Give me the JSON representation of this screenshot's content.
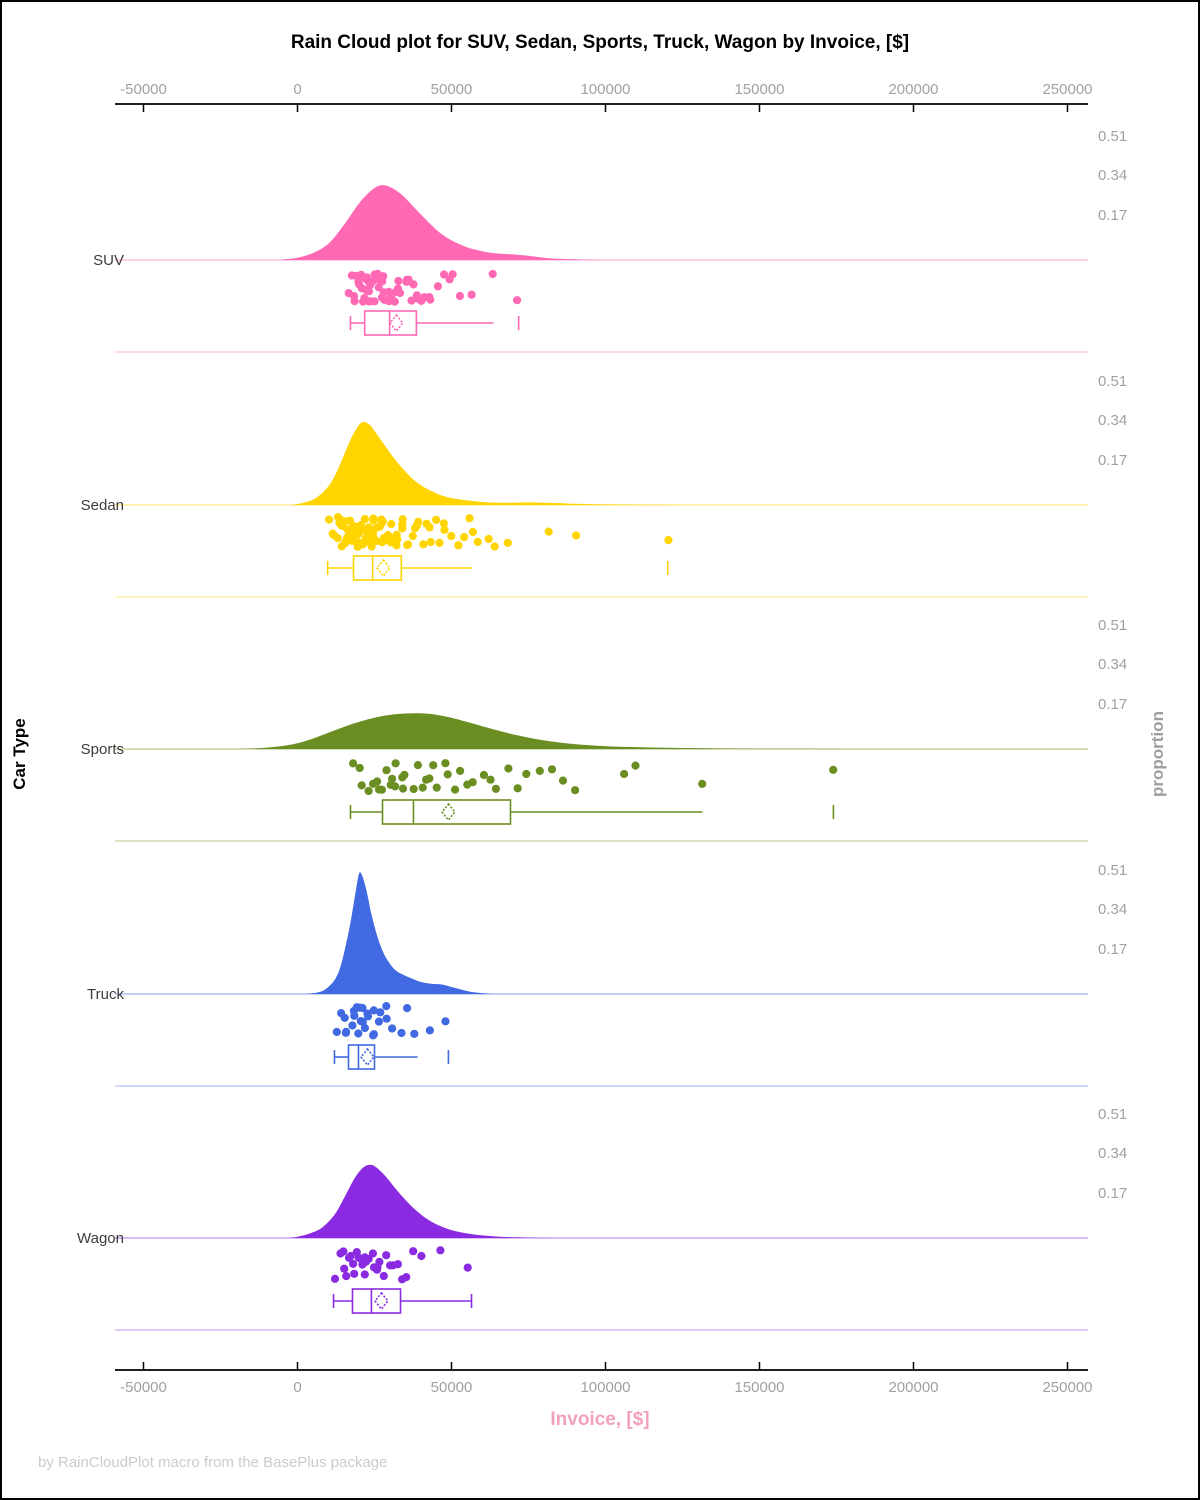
{
  "header": {
    "title": "Rain Cloud plot for SUV, Sedan, Sports, Truck, Wagon by Invoice, [$]"
  },
  "footer": {
    "credit": "by RainCloudPlot macro from the BasePlus package"
  },
  "colors": {
    "title": "#000000",
    "axis_line": "#000000",
    "tick_label": "#A1A1A1",
    "xlabel": "#F2A1BB",
    "ylabel_right": "#9E9E9E",
    "category_label": "#3C3C3C",
    "footer": "#CBCBCB",
    "background": "#FFFFFF"
  },
  "chart_data": {
    "type": "raincloud",
    "title": "Rain Cloud plot for SUV, Sedan, Sports, Truck, Wagon by Invoice, [$]",
    "xlabel": "Invoice, [$]",
    "ylabel": "Car Type",
    "ylabel2": "proportion",
    "xlim": [
      -58500,
      256500
    ],
    "x_ticks": [
      -50000,
      0,
      50000,
      100000,
      150000,
      200000,
      250000
    ],
    "x_tick_labels": [
      "-50000",
      "0",
      "50000",
      "100000",
      "150000",
      "200000",
      "250000"
    ],
    "proportion_ticks": [
      0.51,
      0.34,
      0.17
    ],
    "proportion_tick_labels": [
      "0.51",
      "0.34",
      "0.17"
    ],
    "grid": false,
    "legend": "none",
    "categories": [
      {
        "name": "SUV",
        "color": "#FF69B4",
        "density": [
          [
            -5000,
            0.002
          ],
          [
            0,
            0.01
          ],
          [
            5000,
            0.03
          ],
          [
            10000,
            0.07
          ],
          [
            15000,
            0.15
          ],
          [
            20000,
            0.245
          ],
          [
            24000,
            0.3
          ],
          [
            27000,
            0.322
          ],
          [
            30000,
            0.315
          ],
          [
            34000,
            0.28
          ],
          [
            38000,
            0.225
          ],
          [
            42000,
            0.17
          ],
          [
            46000,
            0.12
          ],
          [
            50000,
            0.085
          ],
          [
            55000,
            0.055
          ],
          [
            60000,
            0.038
          ],
          [
            65000,
            0.028
          ],
          [
            70000,
            0.024
          ],
          [
            75000,
            0.018
          ],
          [
            80000,
            0.01
          ],
          [
            85000,
            0.005
          ],
          [
            92000,
            0.002
          ],
          [
            100000,
            0
          ]
        ],
        "points": [
          17300,
          17900,
          18400,
          18900,
          19300,
          19700,
          20100,
          20400,
          20700,
          21000,
          21300,
          21600,
          21900,
          22200,
          22500,
          22800,
          23100,
          23400,
          23700,
          24000,
          24300,
          24700,
          25100,
          25500,
          25900,
          26300,
          26700,
          27100,
          27500,
          27900,
          28300,
          28800,
          29300,
          29800,
          30300,
          30800,
          31400,
          32000,
          32600,
          33200,
          33900,
          34600,
          35300,
          36000,
          36800,
          37600,
          38400,
          39300,
          40300,
          41400,
          42600,
          43900,
          45300,
          46900,
          48700,
          50700,
          53000,
          57000,
          63500,
          71500
        ],
        "boxplot": {
          "whisker_low": 17200,
          "q1": 21800,
          "median": 29900,
          "q3": 38600,
          "whisker_high": 63600,
          "mean": 32100,
          "outliers": [
            71800
          ]
        }
      },
      {
        "name": "Sedan",
        "color": "#FFD400",
        "density": [
          [
            -2000,
            0
          ],
          [
            2000,
            0.01
          ],
          [
            6000,
            0.03
          ],
          [
            10000,
            0.08
          ],
          [
            13000,
            0.15
          ],
          [
            16000,
            0.245
          ],
          [
            18500,
            0.315
          ],
          [
            21000,
            0.357
          ],
          [
            23500,
            0.345
          ],
          [
            26000,
            0.3
          ],
          [
            29000,
            0.245
          ],
          [
            32000,
            0.19
          ],
          [
            35000,
            0.145
          ],
          [
            38000,
            0.105
          ],
          [
            42000,
            0.07
          ],
          [
            46000,
            0.045
          ],
          [
            50000,
            0.03
          ],
          [
            55000,
            0.02
          ],
          [
            60000,
            0.013
          ],
          [
            65000,
            0.01
          ],
          [
            70000,
            0.01
          ],
          [
            75000,
            0.011
          ],
          [
            80000,
            0.01
          ],
          [
            85000,
            0.008
          ],
          [
            90000,
            0.005
          ],
          [
            97000,
            0.003
          ],
          [
            105000,
            0.002
          ],
          [
            115000,
            0.001
          ],
          [
            125000,
            0
          ]
        ],
        "points": [
          10500,
          11300,
          12000,
          12600,
          13100,
          13500,
          13900,
          14300,
          14600,
          14900,
          15200,
          15500,
          15800,
          16000,
          16300,
          16500,
          16800,
          17000,
          17300,
          17500,
          17700,
          18000,
          18200,
          18400,
          18700,
          18900,
          19100,
          19400,
          19600,
          19800,
          20000,
          20300,
          20500,
          20700,
          21000,
          21200,
          21400,
          21700,
          21900,
          22100,
          22400,
          22600,
          22900,
          23100,
          23400,
          23600,
          23900,
          24100,
          24400,
          24700,
          25000,
          25300,
          25600,
          25900,
          26200,
          26500,
          26900,
          27200,
          27600,
          28000,
          28400,
          28800,
          29200,
          29700,
          30100,
          30600,
          31100,
          31700,
          32200,
          32800,
          33400,
          34000,
          34700,
          35400,
          36100,
          36900,
          37700,
          38500,
          39400,
          40300,
          41300,
          42300,
          43400,
          44600,
          45800,
          47100,
          48500,
          50000,
          51600,
          53300,
          55100,
          57000,
          59000,
          61500,
          64500,
          68000,
          81500,
          90000,
          120000
        ],
        "boxplot": {
          "whisker_low": 9800,
          "q1": 18200,
          "median": 24400,
          "q3": 33700,
          "whisker_high": 56500,
          "mean": 27900,
          "outliers": [
            120200
          ]
        }
      },
      {
        "name": "Sports",
        "color": "#6B8E23",
        "density": [
          [
            -20000,
            0
          ],
          [
            -15000,
            0.002
          ],
          [
            -10000,
            0.006
          ],
          [
            -5000,
            0.013
          ],
          [
            0,
            0.025
          ],
          [
            5000,
            0.045
          ],
          [
            10000,
            0.07
          ],
          [
            15000,
            0.095
          ],
          [
            20000,
            0.117
          ],
          [
            25000,
            0.135
          ],
          [
            30000,
            0.147
          ],
          [
            35000,
            0.153
          ],
          [
            40000,
            0.154
          ],
          [
            45000,
            0.148
          ],
          [
            50000,
            0.135
          ],
          [
            55000,
            0.117
          ],
          [
            60000,
            0.098
          ],
          [
            65000,
            0.08
          ],
          [
            70000,
            0.063
          ],
          [
            75000,
            0.049
          ],
          [
            80000,
            0.037
          ],
          [
            85000,
            0.028
          ],
          [
            90000,
            0.021
          ],
          [
            95000,
            0.016
          ],
          [
            100000,
            0.012
          ],
          [
            110000,
            0.008
          ],
          [
            120000,
            0.005
          ],
          [
            130000,
            0.004
          ],
          [
            140000,
            0.002
          ],
          [
            155000,
            0.001
          ],
          [
            170000,
            0.0005
          ],
          [
            180000,
            0
          ]
        ],
        "points": [
          17500,
          19500,
          21000,
          22500,
          24000,
          25500,
          26500,
          27500,
          28500,
          29500,
          30500,
          31500,
          32500,
          33500,
          34500,
          35500,
          37000,
          38500,
          40000,
          41500,
          43000,
          44500,
          46000,
          47500,
          49000,
          51000,
          53000,
          55000,
          57500,
          60000,
          62500,
          65000,
          68000,
          71000,
          74500,
          78000,
          82000,
          86000,
          90500,
          106000,
          109000,
          131500,
          173500
        ],
        "boxplot": {
          "whisker_low": 17200,
          "q1": 27600,
          "median": 37650,
          "q3": 69150,
          "whisker_high": 131500,
          "mean": 49000,
          "outliers": [
            174000
          ]
        }
      },
      {
        "name": "Truck",
        "color": "#4169E1",
        "density": [
          [
            2000,
            0
          ],
          [
            6000,
            0.005
          ],
          [
            9000,
            0.02
          ],
          [
            12000,
            0.06
          ],
          [
            14000,
            0.12
          ],
          [
            16000,
            0.23
          ],
          [
            17500,
            0.33
          ],
          [
            19000,
            0.45
          ],
          [
            20000,
            0.52
          ],
          [
            21000,
            0.51
          ],
          [
            22500,
            0.44
          ],
          [
            24000,
            0.345
          ],
          [
            26000,
            0.245
          ],
          [
            28000,
            0.175
          ],
          [
            30000,
            0.13
          ],
          [
            32000,
            0.1
          ],
          [
            34000,
            0.085
          ],
          [
            36000,
            0.073
          ],
          [
            38000,
            0.062
          ],
          [
            40000,
            0.052
          ],
          [
            43000,
            0.045
          ],
          [
            46000,
            0.042
          ],
          [
            48000,
            0.038
          ],
          [
            50000,
            0.03
          ],
          [
            53000,
            0.02
          ],
          [
            56000,
            0.01
          ],
          [
            60000,
            0.004
          ],
          [
            64000,
            0
          ]
        ],
        "points": [
          13000,
          14000,
          15000,
          15800,
          16500,
          17200,
          17800,
          18400,
          19000,
          19500,
          20000,
          20500,
          21000,
          21500,
          22000,
          22600,
          23200,
          23800,
          24500,
          25200,
          26000,
          27000,
          28200,
          29500,
          31000,
          33000,
          35500,
          38500,
          43500,
          48800
        ],
        "boxplot": {
          "whisker_low": 12000,
          "q1": 16550,
          "median": 19800,
          "q3": 25000,
          "whisker_high": 39000,
          "mean": 22700,
          "outliers": [
            49000
          ]
        }
      },
      {
        "name": "Wagon",
        "color": "#8A2BE2",
        "density": [
          [
            -3000,
            0
          ],
          [
            0,
            0.005
          ],
          [
            4000,
            0.02
          ],
          [
            8000,
            0.045
          ],
          [
            12000,
            0.1
          ],
          [
            15000,
            0.17
          ],
          [
            18000,
            0.245
          ],
          [
            20000,
            0.285
          ],
          [
            22000,
            0.31
          ],
          [
            24000,
            0.315
          ],
          [
            26000,
            0.3
          ],
          [
            29000,
            0.26
          ],
          [
            32000,
            0.21
          ],
          [
            35000,
            0.165
          ],
          [
            38000,
            0.125
          ],
          [
            41000,
            0.092
          ],
          [
            44000,
            0.067
          ],
          [
            47000,
            0.048
          ],
          [
            50000,
            0.034
          ],
          [
            54000,
            0.022
          ],
          [
            58000,
            0.014
          ],
          [
            62000,
            0.009
          ],
          [
            66000,
            0.005
          ],
          [
            71000,
            0.003
          ],
          [
            77000,
            0.001
          ],
          [
            83000,
            0
          ]
        ],
        "points": [
          12500,
          13500,
          14500,
          15300,
          16000,
          16700,
          17400,
          18000,
          18600,
          19200,
          19800,
          20400,
          21000,
          21600,
          22200,
          22800,
          23400,
          24000,
          24700,
          25400,
          26100,
          26900,
          27800,
          28800,
          29900,
          31100,
          32400,
          33800,
          35400,
          37200,
          40500,
          46000,
          55500
        ],
        "boxplot": {
          "whisker_low": 11700,
          "q1": 17850,
          "median": 24000,
          "q3": 33450,
          "whisker_high": 56500,
          "mean": 27250,
          "outliers": []
        }
      }
    ]
  }
}
